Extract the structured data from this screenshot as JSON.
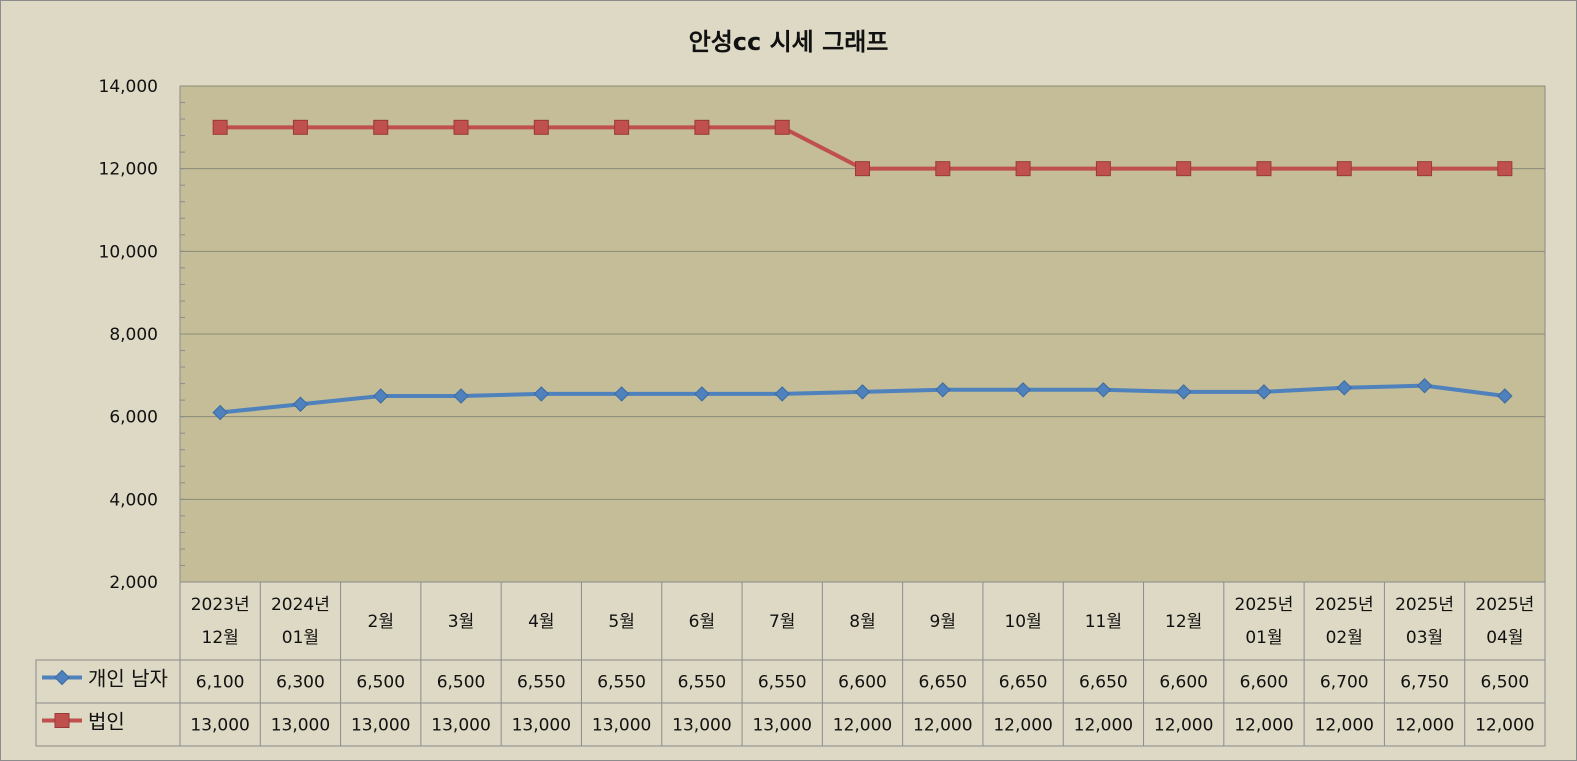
{
  "chart_data": {
    "type": "line",
    "title": "안성cc 시세 그래프",
    "categories": [
      [
        "2023년",
        "12월"
      ],
      [
        "2024년",
        "01월"
      ],
      [
        "2월"
      ],
      [
        "3월"
      ],
      [
        "4월"
      ],
      [
        "5월"
      ],
      [
        "6월"
      ],
      [
        "7월"
      ],
      [
        "8월"
      ],
      [
        "9월"
      ],
      [
        "10월"
      ],
      [
        "11월"
      ],
      [
        "12월"
      ],
      [
        "2025년",
        "01월"
      ],
      [
        "2025년",
        "02월"
      ],
      [
        "2025년",
        "03월"
      ],
      [
        "2025년",
        "04월"
      ]
    ],
    "series": [
      {
        "name": "개인 남자",
        "color": "#4f81bd",
        "marker": "diamond",
        "values": [
          6100,
          6300,
          6500,
          6500,
          6550,
          6550,
          6550,
          6550,
          6600,
          6650,
          6650,
          6650,
          6600,
          6600,
          6700,
          6750,
          6500
        ],
        "labels": [
          "6,100",
          "6,300",
          "6,500",
          "6,500",
          "6,550",
          "6,550",
          "6,550",
          "6,550",
          "6,600",
          "6,650",
          "6,650",
          "6,650",
          "6,600",
          "6,600",
          "6,700",
          "6,750",
          "6,500"
        ]
      },
      {
        "name": "법인",
        "color": "#c0504d",
        "marker": "square",
        "values": [
          13000,
          13000,
          13000,
          13000,
          13000,
          13000,
          13000,
          13000,
          12000,
          12000,
          12000,
          12000,
          12000,
          12000,
          12000,
          12000,
          12000
        ],
        "labels": [
          "13,000",
          "13,000",
          "13,000",
          "13,000",
          "13,000",
          "13,000",
          "13,000",
          "13,000",
          "12,000",
          "12,000",
          "12,000",
          "12,000",
          "12,000",
          "12,000",
          "12,000",
          "12,000",
          "12,000"
        ]
      }
    ],
    "ylim": [
      2000,
      14000
    ],
    "yticks": [
      2000,
      4000,
      6000,
      8000,
      10000,
      12000,
      14000
    ],
    "ytick_labels": [
      "2,000",
      "4,000",
      "6,000",
      "8,000",
      "10,000",
      "12,000",
      "14,000"
    ],
    "grid": true,
    "legend": "data-table",
    "plot_background": "#c4bd97",
    "chart_background": "#ddd9c4"
  }
}
